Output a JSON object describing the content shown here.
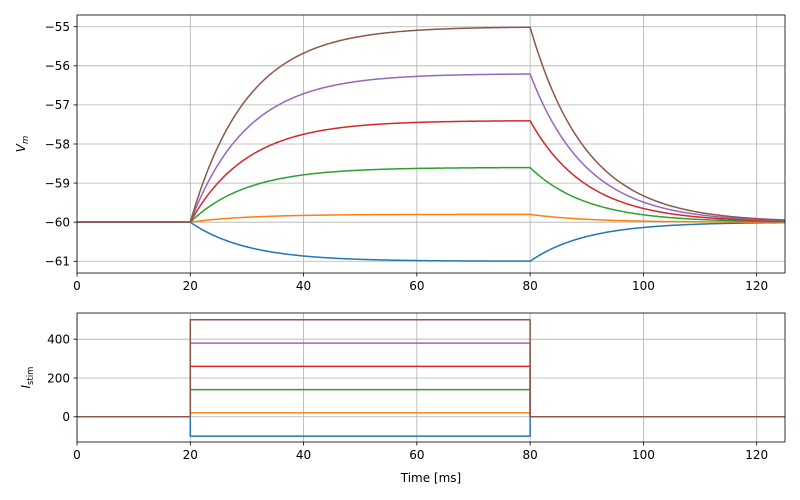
{
  "chart_data": [
    {
      "type": "line",
      "xlabel": "",
      "ylabel_main": "V",
      "ylabel_sub": "m",
      "xlim": [
        0,
        125
      ],
      "ylim": [
        -61.3,
        -54.7
      ],
      "xticks": [
        0,
        20,
        40,
        60,
        80,
        100,
        120
      ],
      "yticks": [
        -61,
        -60,
        -59,
        -58,
        -57,
        -56,
        -55
      ],
      "xtick_labels": [
        "0",
        "20",
        "40",
        "60",
        "80",
        "100",
        "120"
      ],
      "ytick_labels": [
        "−61",
        "−60",
        "−59",
        "−58",
        "−57",
        "−56",
        "−55"
      ],
      "grid": true,
      "stim_on": 20,
      "stim_off": 80,
      "rest": -60,
      "tau_ms": 10,
      "series": [
        {
          "color": "#1f77b4",
          "plateau": -61.0
        },
        {
          "color": "#ff7f0e",
          "plateau": -59.8
        },
        {
          "color": "#2ca02c",
          "plateau": -58.6
        },
        {
          "color": "#d62728",
          "plateau": -57.4
        },
        {
          "color": "#9467bd",
          "plateau": -56.2
        },
        {
          "color": "#8c564b",
          "plateau": -55.0
        }
      ]
    },
    {
      "type": "line",
      "xlabel": "Time [ms]",
      "ylabel_main": "I",
      "ylabel_sub": "stim",
      "xlim": [
        0,
        125
      ],
      "ylim": [
        -130,
        535
      ],
      "xticks": [
        0,
        20,
        40,
        60,
        80,
        100,
        120
      ],
      "yticks": [
        0,
        200,
        400
      ],
      "xtick_labels": [
        "0",
        "20",
        "40",
        "60",
        "80",
        "100",
        "120"
      ],
      "ytick_labels": [
        "0",
        "200",
        "400"
      ],
      "grid": true,
      "stim_on": 20,
      "stim_off": 80,
      "series": [
        {
          "color": "#1f77b4",
          "amplitude": -100
        },
        {
          "color": "#ff7f0e",
          "amplitude": 20
        },
        {
          "color": "#2ca02c",
          "amplitude": 140
        },
        {
          "color": "#d62728",
          "amplitude": 260
        },
        {
          "color": "#9467bd",
          "amplitude": 380
        },
        {
          "color": "#8c564b",
          "amplitude": 500
        }
      ]
    }
  ]
}
